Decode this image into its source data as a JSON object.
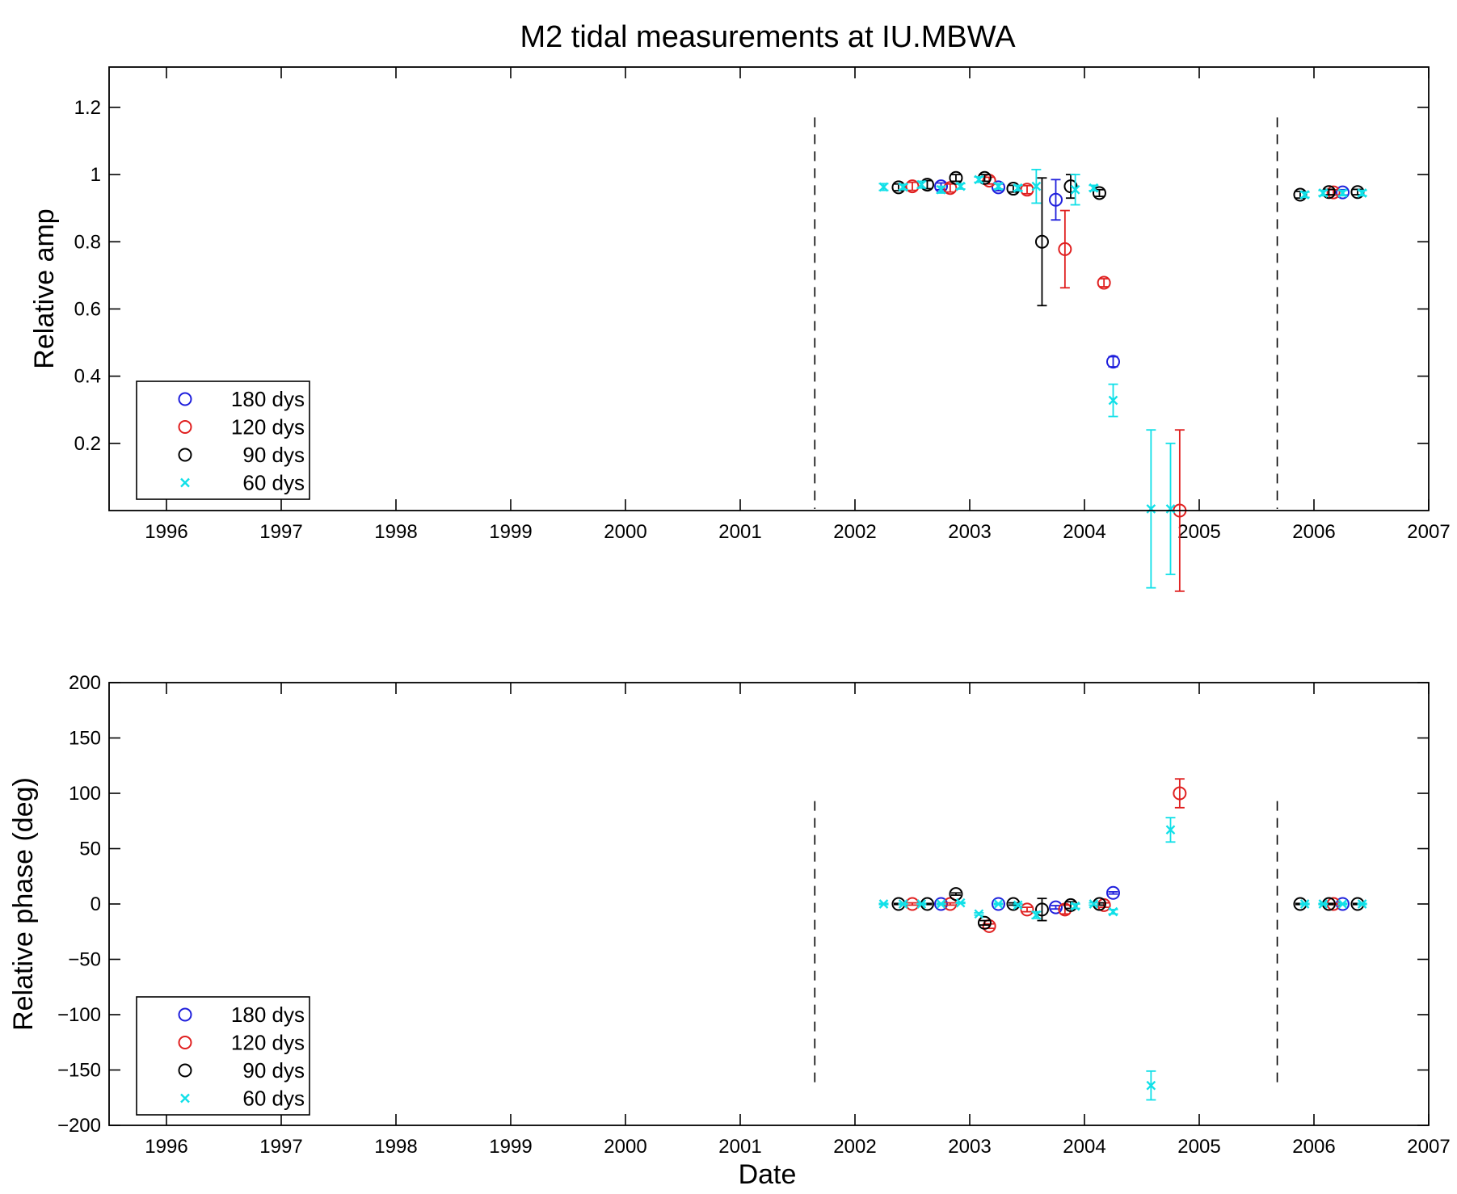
{
  "figure": {
    "title": "M2 tidal measurements at IU.MBWA"
  },
  "chart_data": [
    {
      "type": "scatter",
      "title": "M2 tidal measurements at IU.MBWA",
      "xlabel": "",
      "ylabel": "Relative amp",
      "xlim": [
        1995.5,
        2007
      ],
      "ylim": [
        0,
        1.32
      ],
      "x_ticks": [
        "1996",
        "1997",
        "1998",
        "1999",
        "2000",
        "2001",
        "2002",
        "2003",
        "2004",
        "2005",
        "2006",
        "2007"
      ],
      "y_ticks": [
        "0.2",
        "0.4",
        "0.6",
        "0.8",
        "1",
        "1.2"
      ],
      "vlines": [
        2001.65,
        2005.68
      ],
      "legend": "bottom-left",
      "series": [
        {
          "name": "180 dys",
          "marker": "circle",
          "color": "#1f1fdc",
          "points": [
            {
              "x": 2002.75,
              "y": 0.965,
              "err": 0.01
            },
            {
              "x": 2003.25,
              "y": 0.962,
              "err": 0.01
            },
            {
              "x": 2003.75,
              "y": 0.925,
              "err": 0.06
            },
            {
              "x": 2004.25,
              "y": 0.443,
              "err": 0.015
            },
            {
              "x": 2006.25,
              "y": 0.947,
              "err": 0.008
            }
          ]
        },
        {
          "name": "120 dys",
          "marker": "circle",
          "color": "#e02020",
          "points": [
            {
              "x": 2002.5,
              "y": 0.965,
              "err": 0.012
            },
            {
              "x": 2002.83,
              "y": 0.96,
              "err": 0.012
            },
            {
              "x": 2003.17,
              "y": 0.982,
              "err": 0.01
            },
            {
              "x": 2003.5,
              "y": 0.955,
              "err": 0.012
            },
            {
              "x": 2003.83,
              "y": 0.778,
              "err": 0.115
            },
            {
              "x": 2004.17,
              "y": 0.678,
              "err": 0.012
            },
            {
              "x": 2004.83,
              "y": 0.0,
              "err": 0.24
            },
            {
              "x": 2006.17,
              "y": 0.947,
              "err": 0.008
            }
          ]
        },
        {
          "name": "90 dys",
          "marker": "circle",
          "color": "#000000",
          "points": [
            {
              "x": 2002.38,
              "y": 0.962,
              "err": 0.01
            },
            {
              "x": 2002.63,
              "y": 0.97,
              "err": 0.012
            },
            {
              "x": 2002.88,
              "y": 0.99,
              "err": 0.01
            },
            {
              "x": 2003.13,
              "y": 0.99,
              "err": 0.01
            },
            {
              "x": 2003.38,
              "y": 0.958,
              "err": 0.01
            },
            {
              "x": 2003.63,
              "y": 0.8,
              "err": 0.19
            },
            {
              "x": 2003.88,
              "y": 0.965,
              "err": 0.035
            },
            {
              "x": 2004.13,
              "y": 0.945,
              "err": 0.01
            },
            {
              "x": 2005.88,
              "y": 0.94,
              "err": 0.01
            },
            {
              "x": 2006.13,
              "y": 0.948,
              "err": 0.008
            },
            {
              "x": 2006.38,
              "y": 0.948,
              "err": 0.008
            }
          ]
        },
        {
          "name": "60 dys",
          "marker": "x",
          "color": "#11e0e8",
          "points": [
            {
              "x": 2002.25,
              "y": 0.963,
              "err": 0.01
            },
            {
              "x": 2002.42,
              "y": 0.963,
              "err": 0.008
            },
            {
              "x": 2002.58,
              "y": 0.97,
              "err": 0.01
            },
            {
              "x": 2002.75,
              "y": 0.955,
              "err": 0.01
            },
            {
              "x": 2002.92,
              "y": 0.965,
              "err": 0.008
            },
            {
              "x": 2003.08,
              "y": 0.985,
              "err": 0.008
            },
            {
              "x": 2003.25,
              "y": 0.965,
              "err": 0.008
            },
            {
              "x": 2003.42,
              "y": 0.96,
              "err": 0.008
            },
            {
              "x": 2003.58,
              "y": 0.965,
              "err": 0.05
            },
            {
              "x": 2003.92,
              "y": 0.955,
              "err": 0.045
            },
            {
              "x": 2004.08,
              "y": 0.96,
              "err": 0.008
            },
            {
              "x": 2004.25,
              "y": 0.328,
              "err": 0.048
            },
            {
              "x": 2004.58,
              "y": 0.005,
              "err": 0.235
            },
            {
              "x": 2004.75,
              "y": 0.005,
              "err": 0.195
            },
            {
              "x": 2005.92,
              "y": 0.94,
              "err": 0.008
            },
            {
              "x": 2006.08,
              "y": 0.945,
              "err": 0.008
            },
            {
              "x": 2006.25,
              "y": 0.945,
              "err": 0.008
            },
            {
              "x": 2006.42,
              "y": 0.945,
              "err": 0.008
            }
          ]
        }
      ]
    },
    {
      "type": "scatter",
      "title": "",
      "xlabel": "Date",
      "ylabel": "Relative phase (deg)",
      "xlim": [
        1995.5,
        2007
      ],
      "ylim": [
        -200,
        200
      ],
      "x_ticks": [
        "1996",
        "1997",
        "1998",
        "1999",
        "2000",
        "2001",
        "2002",
        "2003",
        "2004",
        "2005",
        "2006",
        "2007"
      ],
      "y_ticks": [
        "200",
        "150",
        "100",
        "50",
        "0",
        "−50",
        "−100",
        "−150",
        "−200"
      ],
      "vlines": [
        2001.65,
        2005.68
      ],
      "legend": "bottom-left",
      "series": [
        {
          "name": "180 dys",
          "marker": "circle",
          "color": "#1f1fdc",
          "points": [
            {
              "x": 2002.75,
              "y": 0,
              "err": 0.5
            },
            {
              "x": 2003.25,
              "y": 0,
              "err": 0.5
            },
            {
              "x": 2003.75,
              "y": -3,
              "err": 1.5
            },
            {
              "x": 2004.25,
              "y": 10,
              "err": 1
            },
            {
              "x": 2006.25,
              "y": 0,
              "err": 0.5
            }
          ]
        },
        {
          "name": "120 dys",
          "marker": "circle",
          "color": "#e02020",
          "points": [
            {
              "x": 2002.5,
              "y": 0,
              "err": 1
            },
            {
              "x": 2002.83,
              "y": 0,
              "err": 1
            },
            {
              "x": 2003.17,
              "y": -20,
              "err": 2
            },
            {
              "x": 2003.5,
              "y": -5,
              "err": 2
            },
            {
              "x": 2003.83,
              "y": -5,
              "err": 4
            },
            {
              "x": 2004.17,
              "y": -1,
              "err": 2
            },
            {
              "x": 2004.83,
              "y": 100,
              "err": 13
            },
            {
              "x": 2006.17,
              "y": 0,
              "err": 0.5
            }
          ]
        },
        {
          "name": "90 dys",
          "marker": "circle",
          "color": "#000000",
          "points": [
            {
              "x": 2002.38,
              "y": 0,
              "err": 0.5
            },
            {
              "x": 2002.63,
              "y": 0,
              "err": 0.5
            },
            {
              "x": 2002.88,
              "y": 9,
              "err": 1
            },
            {
              "x": 2003.13,
              "y": -17,
              "err": 2
            },
            {
              "x": 2003.38,
              "y": 0,
              "err": 1
            },
            {
              "x": 2003.63,
              "y": -5,
              "err": 10
            },
            {
              "x": 2003.88,
              "y": -1,
              "err": 3
            },
            {
              "x": 2004.13,
              "y": 0,
              "err": 1
            },
            {
              "x": 2005.88,
              "y": 0,
              "err": 0.5
            },
            {
              "x": 2006.13,
              "y": 0,
              "err": 0.5
            },
            {
              "x": 2006.38,
              "y": 0,
              "err": 0.5
            }
          ]
        },
        {
          "name": "60 dys",
          "marker": "x",
          "color": "#11e0e8",
          "points": [
            {
              "x": 2002.25,
              "y": 0,
              "err": 0.5
            },
            {
              "x": 2002.42,
              "y": 0,
              "err": 0.5
            },
            {
              "x": 2002.58,
              "y": 0,
              "err": 0.5
            },
            {
              "x": 2002.75,
              "y": 0,
              "err": 0.5
            },
            {
              "x": 2002.92,
              "y": 1,
              "err": 0.5
            },
            {
              "x": 2003.08,
              "y": -9,
              "err": 1
            },
            {
              "x": 2003.25,
              "y": 0,
              "err": 0.5
            },
            {
              "x": 2003.42,
              "y": -1,
              "err": 1
            },
            {
              "x": 2003.58,
              "y": -10,
              "err": 3
            },
            {
              "x": 2003.92,
              "y": -2,
              "err": 2
            },
            {
              "x": 2004.08,
              "y": 0,
              "err": 1
            },
            {
              "x": 2004.25,
              "y": -7,
              "err": 2
            },
            {
              "x": 2004.58,
              "y": -164,
              "err": 13
            },
            {
              "x": 2004.75,
              "y": 67,
              "err": 11
            },
            {
              "x": 2005.92,
              "y": 0,
              "err": 0.5
            },
            {
              "x": 2006.08,
              "y": 0,
              "err": 0.5
            },
            {
              "x": 2006.25,
              "y": 0,
              "err": 0.5
            },
            {
              "x": 2006.42,
              "y": 0,
              "err": 0.5
            }
          ]
        }
      ]
    }
  ]
}
